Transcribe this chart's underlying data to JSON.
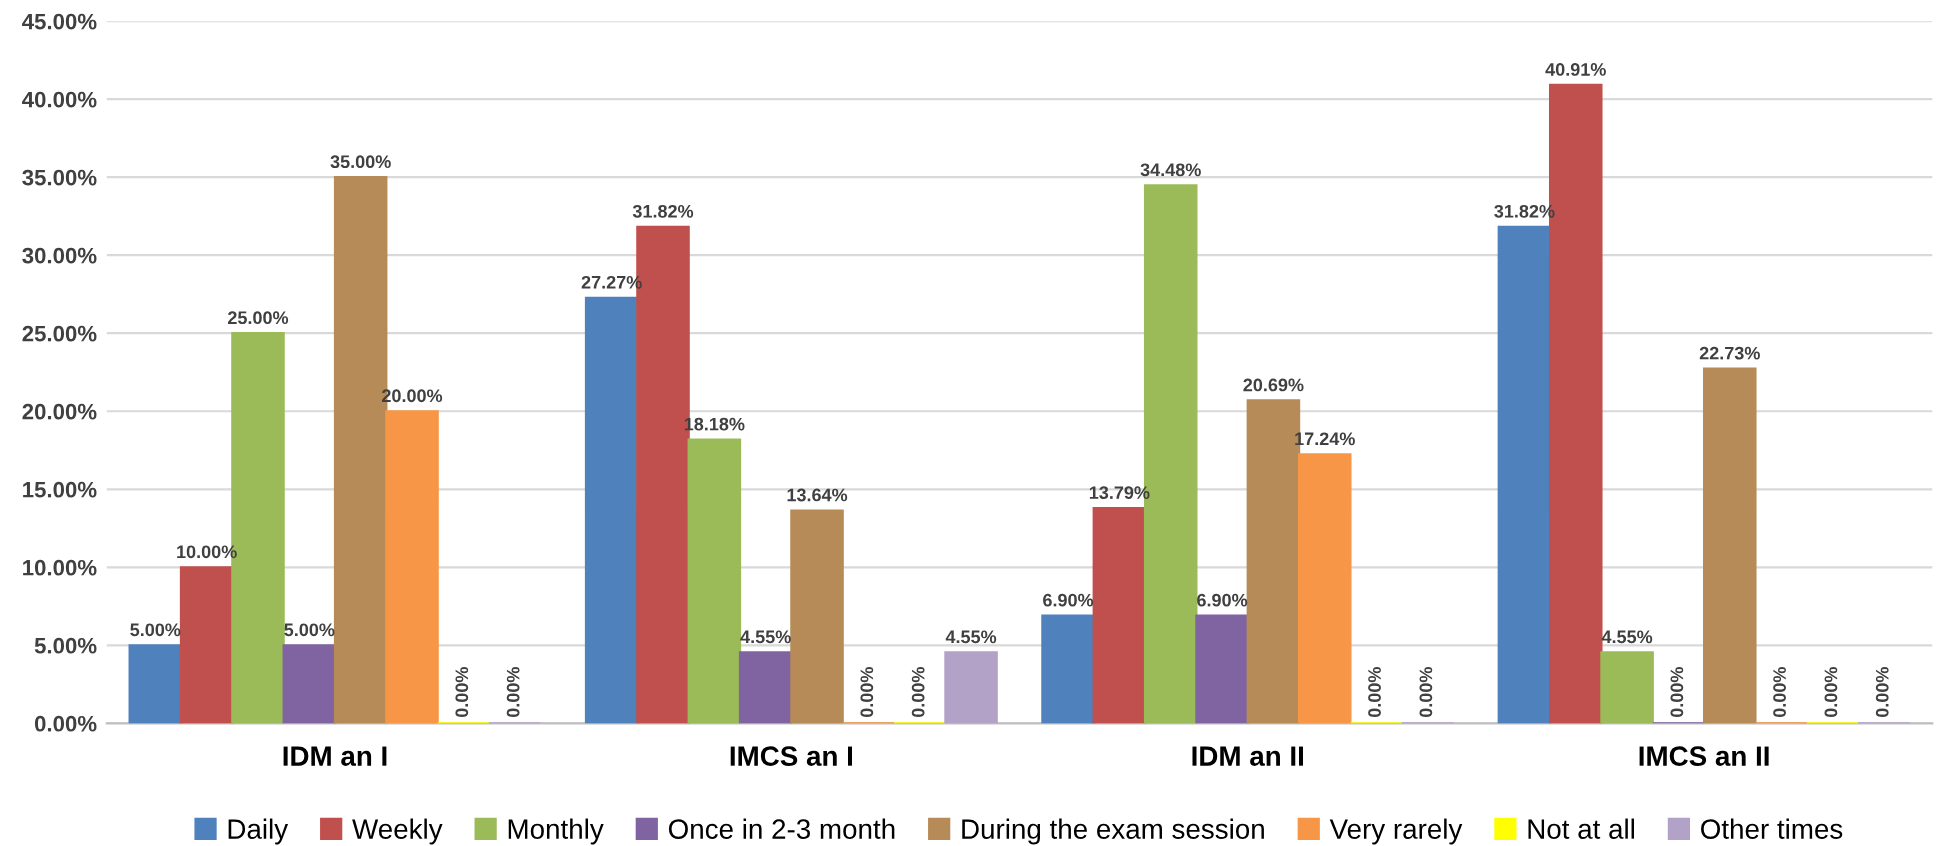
{
  "chart_data": {
    "type": "bar",
    "categories": [
      "IDM an I",
      "IMCS an I",
      "IDM an II",
      "IMCS an II"
    ],
    "series": [
      {
        "name": "Daily",
        "color": "#4f81bd",
        "values": [
          5.0,
          27.27,
          6.9,
          31.82
        ],
        "value_labels": [
          "5.00%",
          "27.27%",
          "6.90%",
          "31.82%"
        ]
      },
      {
        "name": "Weekly",
        "color": "#c0504d",
        "values": [
          10.0,
          31.82,
          13.79,
          40.91
        ],
        "value_labels": [
          "10.00%",
          "31.82%",
          "13.79%",
          "40.91%"
        ]
      },
      {
        "name": "Monthly",
        "color": "#9bbb59",
        "values": [
          25.0,
          18.18,
          34.48,
          4.55
        ],
        "value_labels": [
          "25.00%",
          "18.18%",
          "34.48%",
          "4.55%"
        ]
      },
      {
        "name": "Once in 2-3 month",
        "color": "#8064a2",
        "values": [
          5.0,
          4.55,
          6.9,
          0.0
        ],
        "value_labels": [
          "5.00%",
          "4.55%",
          "6.90%",
          "0.00%"
        ]
      },
      {
        "name": "During the exam session",
        "color": "#b68b57",
        "values": [
          35.0,
          13.64,
          20.69,
          22.73
        ],
        "value_labels": [
          "35.00%",
          "13.64%",
          "20.69%",
          "22.73%"
        ]
      },
      {
        "name": "Very rarely",
        "color": "#f79646",
        "values": [
          20.0,
          0.0,
          17.24,
          0.0
        ],
        "value_labels": [
          "20.00%",
          "0.00%",
          "17.24%",
          "0.00%"
        ]
      },
      {
        "name": "Not at all",
        "color": "#ffff00",
        "values": [
          0.0,
          0.0,
          0.0,
          0.0
        ],
        "value_labels": [
          "0.00%",
          "0.00%",
          "0.00%",
          "0.00%"
        ]
      },
      {
        "name": "Other times",
        "color": "#b3a2c7",
        "values": [
          0.0,
          4.55,
          0.0,
          0.0
        ],
        "value_labels": [
          "0.00%",
          "4.55%",
          "0.00%",
          "0.00%"
        ]
      }
    ],
    "ylim": [
      0,
      45
    ],
    "yticks": [
      {
        "value": 0,
        "label": "0.00%"
      },
      {
        "value": 5,
        "label": "5.00%"
      },
      {
        "value": 10,
        "label": "10.00%"
      },
      {
        "value": 15,
        "label": "15.00%"
      },
      {
        "value": 20,
        "label": "20.00%"
      },
      {
        "value": 25,
        "label": "25.00%"
      },
      {
        "value": 30,
        "label": "30.00%"
      },
      {
        "value": 35,
        "label": "35.00%"
      },
      {
        "value": 40,
        "label": "40.00%"
      },
      {
        "value": 45,
        "label": "45.00%"
      }
    ],
    "grid": "y",
    "legend": "bottom"
  }
}
